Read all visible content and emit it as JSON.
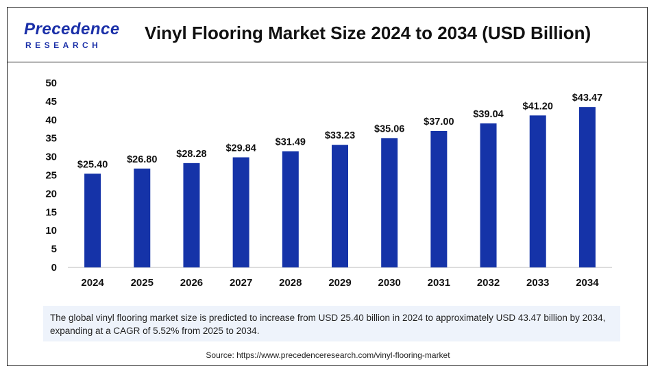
{
  "logo": {
    "brand": "Precedence",
    "sub": "RESEARCH"
  },
  "header": {
    "title": "Vinyl Flooring Market Size 2024 to 2034 (USD Billion)"
  },
  "description": "The global vinyl flooring market size is predicted to increase from USD 25.40 billion in 2024 to approximately USD 43.47 billion by 2034, expanding at a CAGR of 5.52% from 2025 to 2034.",
  "source": "Source: https://www.precedenceresearch.com/vinyl-flooring-market",
  "colors": {
    "bar": "#1533a8",
    "brand": "#1a2fa8"
  },
  "chart_data": {
    "type": "bar",
    "title": "Vinyl Flooring Market Size 2024 to 2034 (USD Billion)",
    "categories": [
      "2024",
      "2025",
      "2026",
      "2027",
      "2028",
      "2029",
      "2030",
      "2031",
      "2032",
      "2033",
      "2034"
    ],
    "values": [
      25.4,
      26.8,
      28.28,
      29.84,
      31.49,
      33.23,
      35.06,
      37.0,
      39.04,
      41.2,
      43.47
    ],
    "data_labels": [
      "$25.40",
      "$26.80",
      "$28.28",
      "$29.84",
      "$31.49",
      "$33.23",
      "$35.06",
      "$37.00",
      "$39.04",
      "$41.20",
      "$43.47"
    ],
    "yticks": [
      0,
      5,
      10,
      15,
      20,
      25,
      30,
      35,
      40,
      45,
      50
    ],
    "ylim": [
      0,
      50
    ],
    "xlabel": "",
    "ylabel": "",
    "grid": false,
    "legend": "none"
  }
}
